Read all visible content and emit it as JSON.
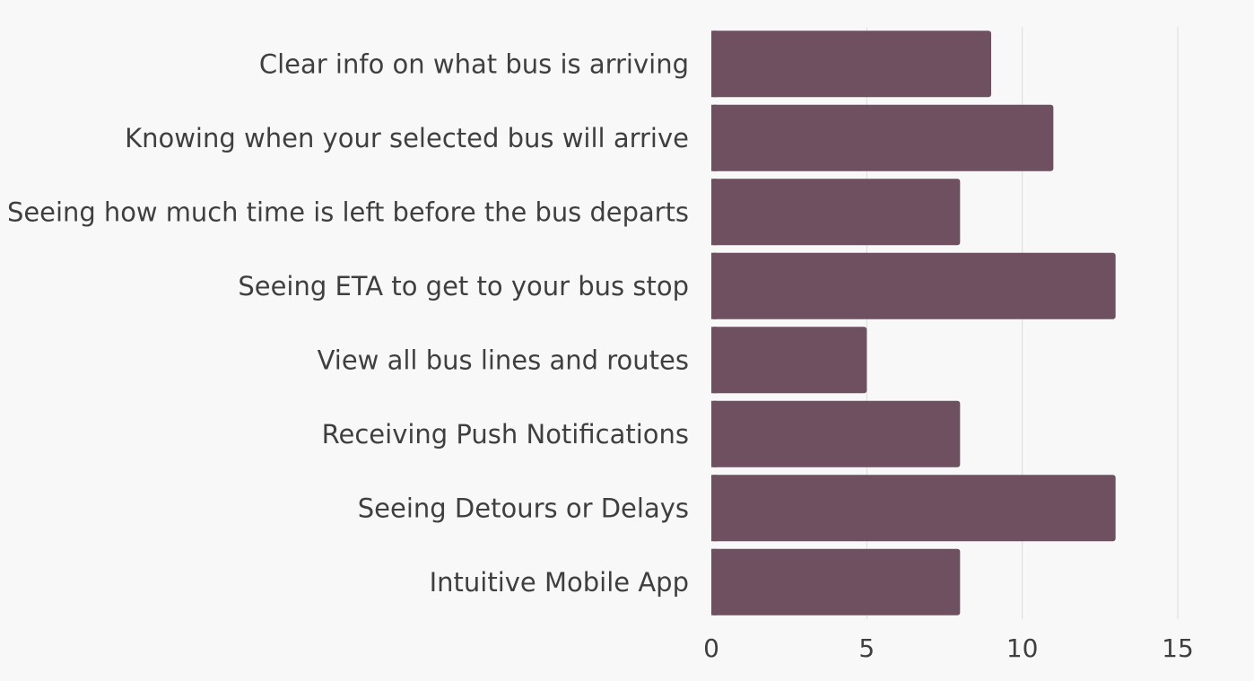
{
  "chart_data": {
    "type": "bar",
    "orientation": "horizontal",
    "categories": [
      "Clear info on what bus is arriving",
      "Knowing when your selected bus will arrive",
      "Seeing how much time is left before the bus departs",
      "Seeing ETA to get to your bus stop",
      "View all bus lines and routes",
      "Receiving Push Notifications",
      "Seeing Detours or Delays",
      "Intuitive Mobile App"
    ],
    "values": [
      9,
      11,
      8,
      13,
      5,
      8,
      13,
      8
    ],
    "xlim": [
      0,
      15
    ],
    "xticks": [
      "0",
      "5",
      "10",
      "15"
    ],
    "grid": "vertical",
    "title": "",
    "xlabel": "",
    "ylabel": "",
    "bar_color": "#6e5060",
    "background": "#f8f8f8"
  }
}
